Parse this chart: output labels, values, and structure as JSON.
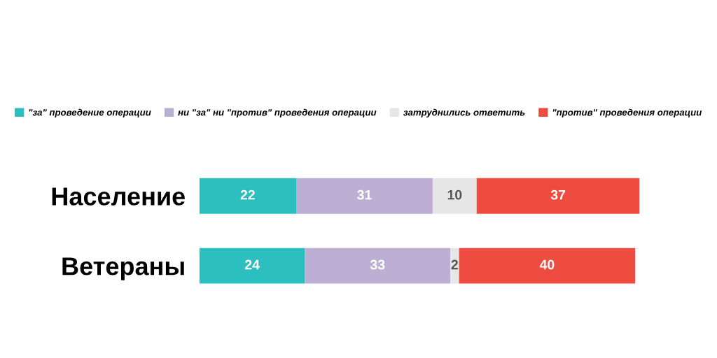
{
  "chart_data": {
    "type": "bar",
    "orientation": "horizontal",
    "stacked": true,
    "data_labels": true,
    "legend": "top",
    "grid": false,
    "tick_labels": "y",
    "categories": [
      "Население",
      "Ветераны"
    ],
    "series": [
      {
        "name": "\"за\" проведение операции",
        "color": "#2bbfbf",
        "values": [
          22,
          24
        ]
      },
      {
        "name": "ни \"за\" ни \"против\" проведения операции",
        "color": "#bdaed4",
        "values": [
          31,
          33
        ]
      },
      {
        "name": "затруднились ответить",
        "color": "#e6e6e6",
        "values": [
          10,
          2
        ]
      },
      {
        "name": "\"против\" проведения операции",
        "color": "#ef4c41",
        "values": [
          37,
          40
        ]
      }
    ]
  }
}
